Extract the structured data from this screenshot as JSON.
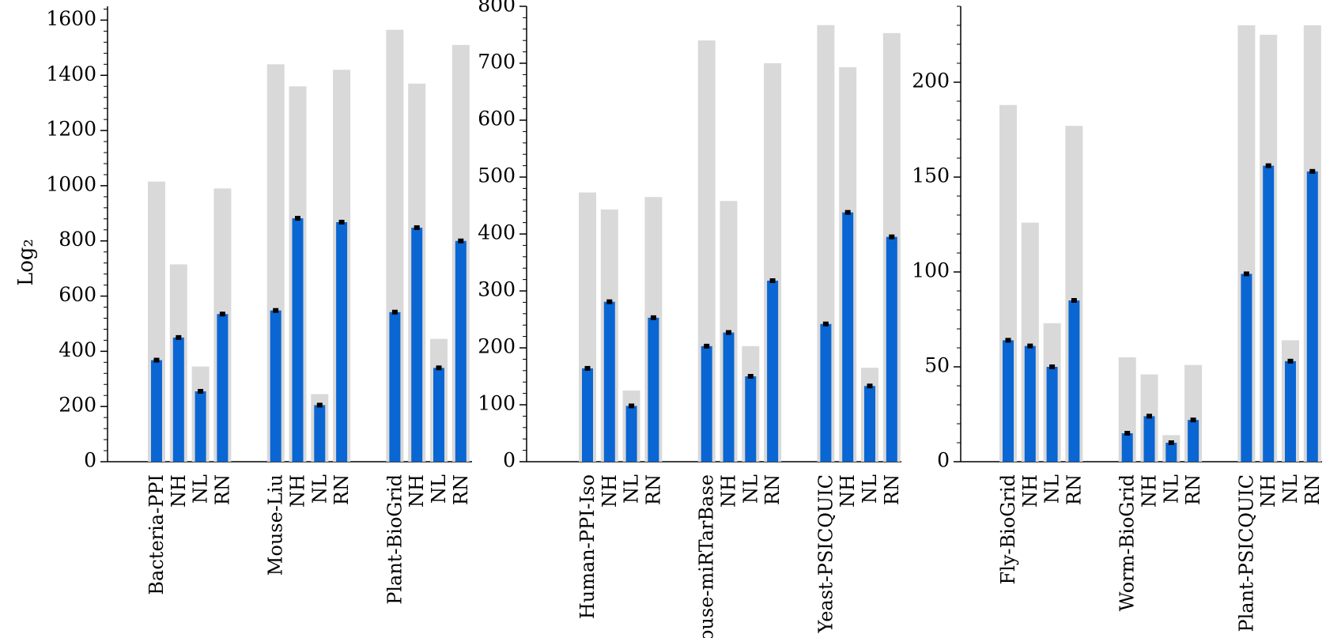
{
  "figure": {
    "ylabel": "Log₂"
  },
  "colors": {
    "background_bar": "#d9d9d9",
    "value_bar": "#0a66d2",
    "error_bar": "#000000",
    "axis": "#000000"
  },
  "chart_data": [
    {
      "type": "bar",
      "ylim": [
        0,
        1650
      ],
      "yticks": [
        0,
        200,
        400,
        600,
        800,
        1000,
        1200,
        1400,
        1600
      ],
      "grid": false,
      "categories": [
        "Bacteria-PPI",
        "NH",
        "NL",
        "RN",
        "Mouse-Liu",
        "NH",
        "NL",
        "RN",
        "Plant-BioGrid",
        "NH",
        "NL",
        "RN"
      ],
      "series": [
        {
          "values": [
            1015,
            715,
            345,
            990,
            1440,
            1360,
            245,
            1420,
            1565,
            1370,
            445,
            1510
          ]
        },
        {
          "values": [
            368,
            450,
            255,
            535,
            548,
            882,
            205,
            868,
            542,
            848,
            340,
            800
          ]
        }
      ]
    },
    {
      "type": "bar",
      "ylim": [
        0,
        800
      ],
      "yticks": [
        0,
        100,
        200,
        300,
        400,
        500,
        600,
        700,
        800
      ],
      "grid": false,
      "categories": [
        "Human-PPI-Iso",
        "NH",
        "NL",
        "RN",
        "Mouse-miRTarBase",
        "NH",
        "NL",
        "RN",
        "Yeast-PSICQUIC",
        "NH",
        "NL",
        "RN"
      ],
      "series": [
        {
          "values": [
            473,
            443,
            125,
            465,
            740,
            458,
            203,
            700,
            767,
            693,
            165,
            753
          ]
        },
        {
          "values": [
            164,
            281,
            98,
            253,
            203,
            227,
            150,
            318,
            242,
            438,
            133,
            395
          ]
        }
      ]
    },
    {
      "type": "bar",
      "ylim": [
        0,
        240
      ],
      "yticks": [
        0,
        50,
        100,
        150,
        200
      ],
      "grid": false,
      "categories": [
        "Fly-BioGrid",
        "NH",
        "NL",
        "RN",
        "Worm-BioGrid",
        "NH",
        "NL",
        "RN",
        "Plant-PSICQUIC",
        "NH",
        "NL",
        "RN"
      ],
      "series": [
        {
          "values": [
            188,
            126,
            73,
            177,
            55,
            46,
            14,
            51,
            230,
            225,
            64,
            230
          ]
        },
        {
          "values": [
            64,
            61,
            50,
            85,
            15,
            24,
            10,
            22,
            99,
            156,
            53,
            153
          ]
        }
      ]
    }
  ]
}
